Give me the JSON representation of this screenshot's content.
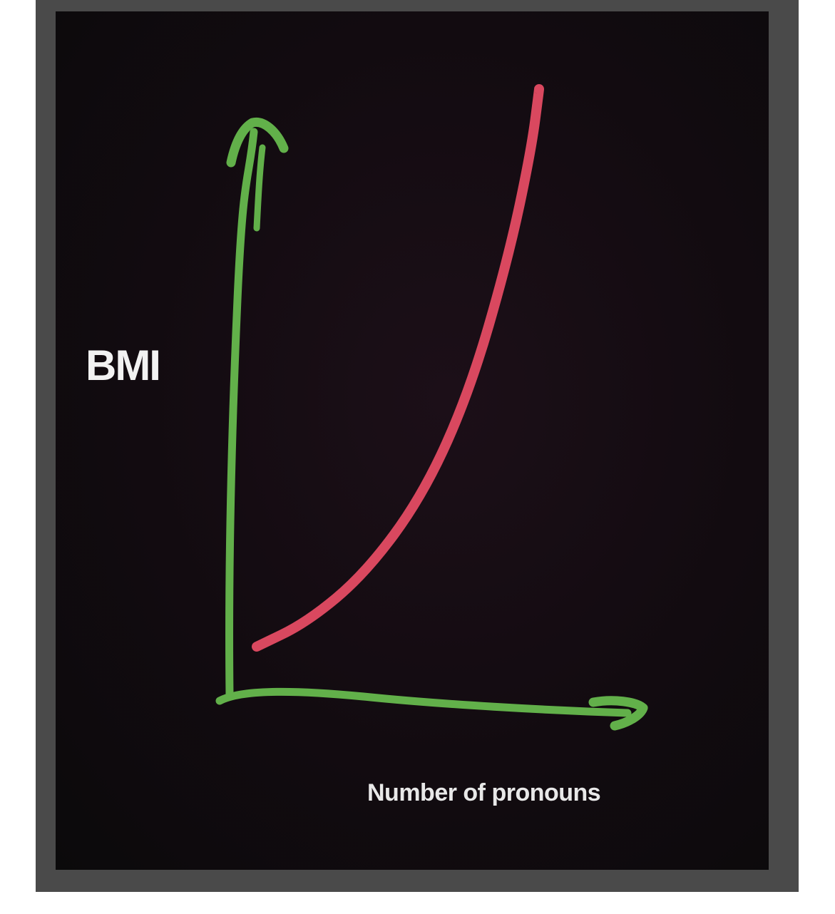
{
  "chart_data": {
    "type": "line",
    "ylabel": "BMI",
    "xlabel": "Number of pronouns",
    "ticks": "none",
    "grid": false,
    "legend": "none",
    "series": [
      {
        "shape": "exponential-increase",
        "color": "#d9485f",
        "values_relative": [
          [
            0.07,
            0.08
          ],
          [
            0.2,
            0.12
          ],
          [
            0.35,
            0.2
          ],
          [
            0.5,
            0.33
          ],
          [
            0.62,
            0.5
          ],
          [
            0.72,
            0.72
          ],
          [
            0.78,
            0.9
          ],
          [
            0.8,
            1.0
          ]
        ]
      }
    ]
  },
  "colors": {
    "axes": "#62b04a",
    "curve": "#d9485f",
    "background": "#0f0b0e",
    "frame": "#4a4a4a",
    "text": "#f0f0f0"
  }
}
